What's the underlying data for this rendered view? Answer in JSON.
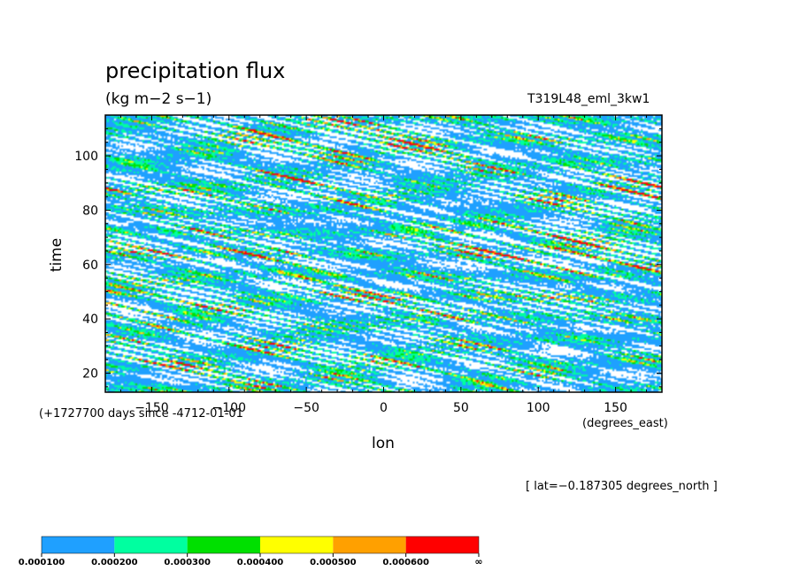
{
  "chart_data": {
    "type": "heatmap",
    "title": "precipitation flux",
    "units": "(kg m−2 s−1)",
    "run_id": "T319L48_eml_3kw1",
    "xlabel": "lon",
    "x_units": "(degrees_east)",
    "ylabel": "time",
    "time_origin": "(+1727700 days since -4712-01-01",
    "slice_info": "[ lat=−0.187305 degrees_north ]",
    "xlim": [
      -180,
      180
    ],
    "ylim": [
      13,
      115
    ],
    "x_ticks": [
      -150,
      -100,
      -50,
      0,
      50,
      100,
      150
    ],
    "x_tick_labels": [
      "−150",
      "−100",
      "−50",
      "0",
      "50",
      "100",
      "150"
    ],
    "y_ticks": [
      20,
      40,
      60,
      80,
      100
    ],
    "y_tick_labels": [
      "20",
      "40",
      "60",
      "80",
      "100"
    ],
    "color_levels": [
      {
        "label": "0.000100",
        "color": "#1fa0ff"
      },
      {
        "label": "0.000200",
        "color": "#00ffa0"
      },
      {
        "label": "0.000300",
        "color": "#00e000"
      },
      {
        "label": "0.000400",
        "color": "#ffff00"
      },
      {
        "label": "0.000500",
        "color": "#ffa000"
      },
      {
        "label": "0.000600",
        "color": "#ff0000"
      }
    ],
    "colorbar_end_label": "∞",
    "field_description": "eastward-propagating bands of precipitation; white where below 0.000100"
  }
}
